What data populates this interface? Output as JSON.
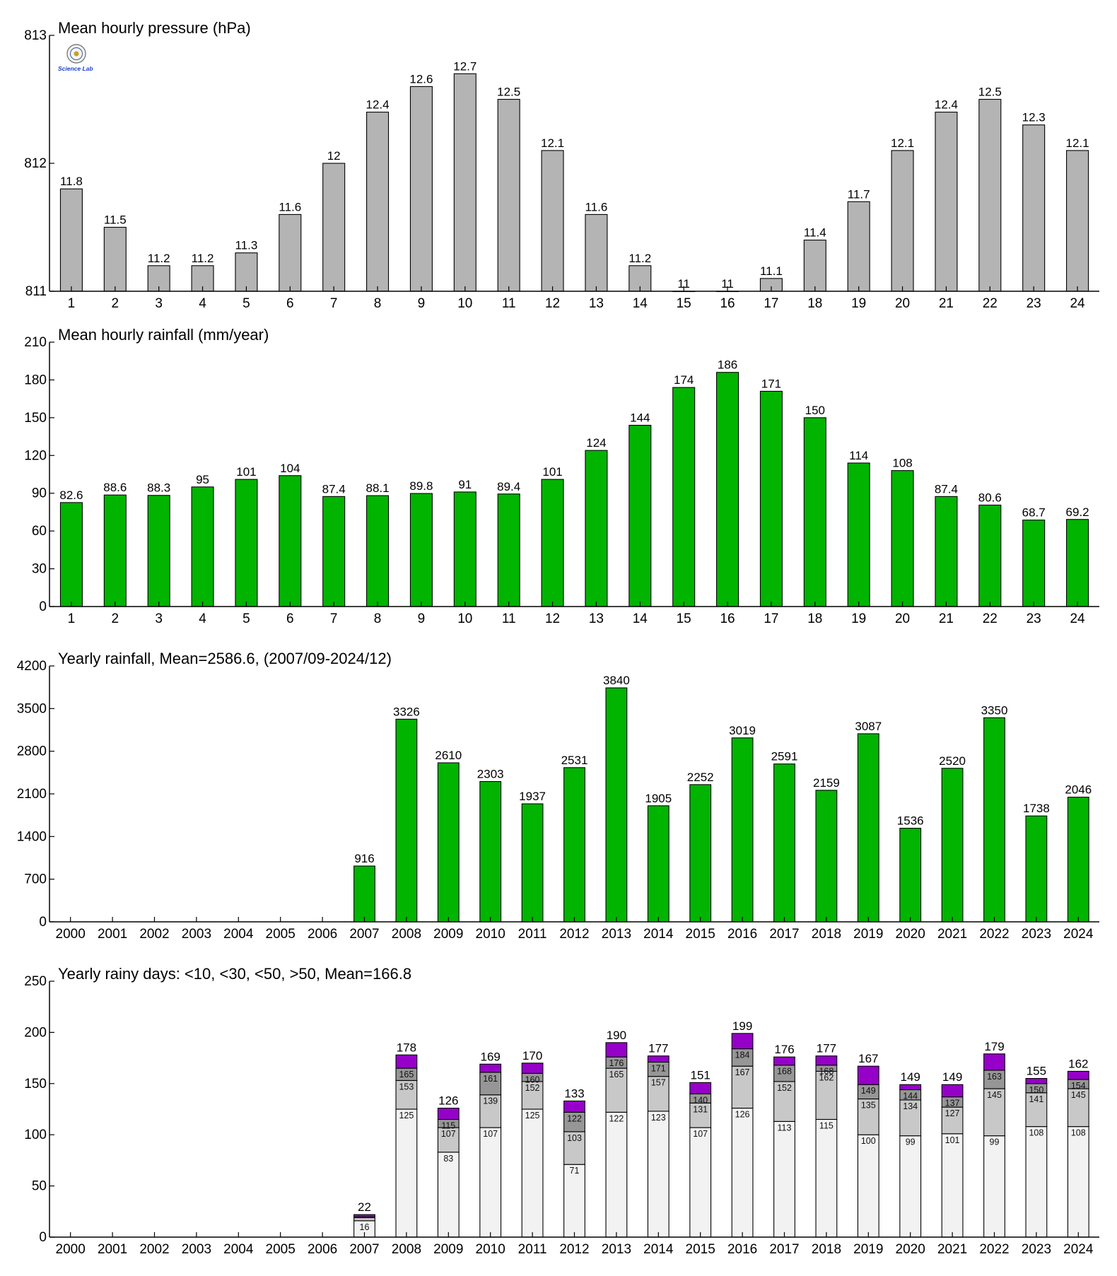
{
  "logo": {
    "text": "Science Lab"
  },
  "chart_data": [
    {
      "type": "bar",
      "title": "Mean hourly pressure (hPa)",
      "yticks": [
        "811",
        "812",
        "813"
      ],
      "ylim": [
        811,
        813
      ],
      "categories": [
        "1",
        "2",
        "3",
        "4",
        "5",
        "6",
        "7",
        "8",
        "9",
        "10",
        "11",
        "12",
        "13",
        "14",
        "15",
        "16",
        "17",
        "18",
        "19",
        "20",
        "21",
        "22",
        "23",
        "24"
      ],
      "values": [
        811.8,
        811.5,
        811.2,
        811.2,
        811.3,
        811.6,
        812.0,
        812.4,
        812.6,
        812.7,
        812.5,
        812.1,
        811.6,
        811.2,
        811.0,
        811.0,
        811.1,
        811.4,
        811.7,
        812.1,
        812.4,
        812.5,
        812.3,
        812.1
      ],
      "labels": [
        "11.8",
        "11.5",
        "11.2",
        "11.2",
        "11.3",
        "11.6",
        "12",
        "12.4",
        "12.6",
        "12.7",
        "12.5",
        "12.1",
        "11.6",
        "11.2",
        "11",
        "11",
        "11.1",
        "11.4",
        "11.7",
        "12.1",
        "12.4",
        "12.5",
        "12.3",
        "12.1"
      ],
      "color": "#b4b4b4"
    },
    {
      "type": "bar",
      "title": "Mean hourly rainfall (mm/year)",
      "yticks": [
        "0",
        "30",
        "60",
        "90",
        "120",
        "150",
        "180",
        "210"
      ],
      "ylim": [
        0,
        210
      ],
      "categories": [
        "1",
        "2",
        "3",
        "4",
        "5",
        "6",
        "7",
        "8",
        "9",
        "10",
        "11",
        "12",
        "13",
        "14",
        "15",
        "16",
        "17",
        "18",
        "19",
        "20",
        "21",
        "22",
        "23",
        "24"
      ],
      "values": [
        82.6,
        88.6,
        88.3,
        95,
        101,
        104,
        87.4,
        88.1,
        89.8,
        91,
        89.4,
        101,
        124,
        144,
        174,
        186,
        171,
        150,
        114,
        108,
        87.4,
        80.6,
        68.7,
        69.2
      ],
      "labels": [
        "82.6",
        "88.6",
        "88.3",
        "95",
        "101",
        "104",
        "87.4",
        "88.1",
        "89.8",
        "91",
        "89.4",
        "101",
        "124",
        "144",
        "174",
        "186",
        "171",
        "150",
        "114",
        "108",
        "87.4",
        "80.6",
        "68.7",
        "69.2"
      ],
      "color": "#00b400"
    },
    {
      "type": "bar",
      "title": "Yearly rainfall, Mean=2586.6, (2007/09-2024/12)",
      "yticks": [
        "0",
        "700",
        "1400",
        "2100",
        "2800",
        "3500",
        "4200"
      ],
      "ylim": [
        0,
        4200
      ],
      "categories": [
        "2000",
        "2001",
        "2002",
        "2003",
        "2004",
        "2005",
        "2006",
        "2007",
        "2008",
        "2009",
        "2010",
        "2011",
        "2012",
        "2013",
        "2014",
        "2015",
        "2016",
        "2017",
        "2018",
        "2019",
        "2020",
        "2021",
        "2022",
        "2023",
        "2024"
      ],
      "values": [
        null,
        null,
        null,
        null,
        null,
        null,
        null,
        916,
        3326,
        2610,
        2303,
        1937,
        2531,
        3840,
        1905,
        2252,
        3019,
        2591,
        2159,
        3087,
        1536,
        2520,
        3350,
        1738,
        2046
      ],
      "labels": [
        "",
        "",
        "",
        "",
        "",
        "",
        "",
        "916",
        "3326",
        "2610",
        "2303",
        "1937",
        "2531",
        "3840",
        "1905",
        "2252",
        "3019",
        "2591",
        "2159",
        "3087",
        "1536",
        "2520",
        "3350",
        "1738",
        "2046"
      ],
      "color": "#00b400"
    },
    {
      "type": "bar",
      "stacked": true,
      "title": "Yearly rainy days: <10, <30, <50, >50, Mean=166.8",
      "yticks": [
        "0",
        "50",
        "100",
        "150",
        "200",
        "250"
      ],
      "ylim": [
        0,
        250
      ],
      "categories": [
        "2000",
        "2001",
        "2002",
        "2003",
        "2004",
        "2005",
        "2006",
        "2007",
        "2008",
        "2009",
        "2010",
        "2011",
        "2012",
        "2013",
        "2014",
        "2015",
        "2016",
        "2017",
        "2018",
        "2019",
        "2020",
        "2021",
        "2022",
        "2023",
        "2024"
      ],
      "colors": [
        "#f2f2f2",
        "#c8c8c8",
        "#969696",
        "#9600c8"
      ],
      "cumulative": [
        null,
        null,
        null,
        null,
        null,
        null,
        null,
        [
          16,
          19,
          20,
          22
        ],
        [
          125,
          153,
          165,
          178
        ],
        [
          83,
          107,
          115,
          126
        ],
        [
          107,
          139,
          161,
          169
        ],
        [
          125,
          152,
          160,
          170
        ],
        [
          71,
          103,
          122,
          133
        ],
        [
          122,
          165,
          176,
          190
        ],
        [
          123,
          157,
          171,
          177
        ],
        [
          107,
          131,
          140,
          151
        ],
        [
          126,
          167,
          184,
          199
        ],
        [
          113,
          152,
          168,
          176
        ],
        [
          115,
          162,
          168,
          177
        ],
        [
          100,
          135,
          149,
          167
        ],
        [
          99,
          134,
          144,
          149
        ],
        [
          101,
          127,
          137,
          149
        ],
        [
          99,
          145,
          163,
          179
        ],
        [
          108,
          141,
          150,
          155
        ],
        [
          108,
          145,
          154,
          162
        ]
      ],
      "seg_labels": [
        null,
        null,
        null,
        null,
        null,
        null,
        null,
        [
          "16",
          "",
          ""
        ],
        [
          "125",
          "153",
          "165"
        ],
        [
          "83",
          "107",
          "115"
        ],
        [
          "107",
          "139",
          "161"
        ],
        [
          "125",
          "152",
          "160"
        ],
        [
          "71",
          "103",
          "122"
        ],
        [
          "122",
          "165",
          "176"
        ],
        [
          "123",
          "157",
          "171"
        ],
        [
          "107",
          "131",
          "140"
        ],
        [
          "126",
          "167",
          "184"
        ],
        [
          "113",
          "152",
          "168"
        ],
        [
          "115",
          "162",
          "168"
        ],
        [
          "100",
          "135",
          "149"
        ],
        [
          "99",
          "134",
          "144"
        ],
        [
          "101",
          "127",
          "137"
        ],
        [
          "99",
          "145",
          "163"
        ],
        [
          "108",
          "141",
          "150"
        ],
        [
          "108",
          "145",
          "154"
        ]
      ],
      "labels": [
        "",
        "",
        "",
        "",
        "",
        "",
        "",
        "22",
        "178",
        "126",
        "169",
        "170",
        "133",
        "190",
        "177",
        "151",
        "199",
        "176",
        "177",
        "167",
        "149",
        "149",
        "179",
        "155",
        "162"
      ]
    }
  ]
}
